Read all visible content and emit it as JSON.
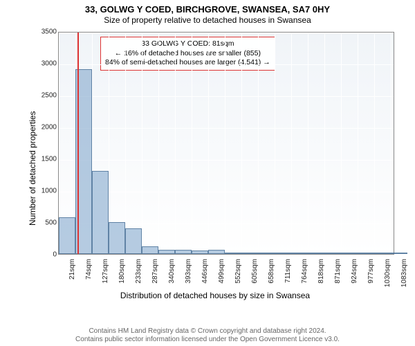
{
  "title": {
    "main": "33, GOLWG Y COED, BIRCHGROVE, SWANSEA, SA7 0HY",
    "sub": "Size of property relative to detached houses in Swansea"
  },
  "chart": {
    "type": "histogram",
    "ylabel": "Number of detached properties",
    "xlabel": "Distribution of detached houses by size in Swansea",
    "ylim": [
      0,
      3500
    ],
    "ytick_step": 500,
    "xmin": 21,
    "xmax": 1096,
    "xtick_step": 53,
    "xtick_unit": "sqm",
    "xticks": [
      21,
      74,
      127,
      180,
      233,
      287,
      340,
      393,
      446,
      499,
      552,
      605,
      658,
      711,
      764,
      818,
      871,
      924,
      977,
      1030,
      1083
    ],
    "bars": [
      {
        "x": 21,
        "v": 580
      },
      {
        "x": 74,
        "v": 2900
      },
      {
        "x": 127,
        "v": 1300
      },
      {
        "x": 180,
        "v": 500
      },
      {
        "x": 233,
        "v": 400
      },
      {
        "x": 287,
        "v": 120
      },
      {
        "x": 340,
        "v": 70
      },
      {
        "x": 393,
        "v": 70
      },
      {
        "x": 446,
        "v": 50
      },
      {
        "x": 499,
        "v": 60
      },
      {
        "x": 552,
        "v": 15
      },
      {
        "x": 605,
        "v": 15
      },
      {
        "x": 658,
        "v": 10
      },
      {
        "x": 711,
        "v": 10
      },
      {
        "x": 764,
        "v": 8
      },
      {
        "x": 818,
        "v": 6
      },
      {
        "x": 871,
        "v": 5
      },
      {
        "x": 924,
        "v": 5
      },
      {
        "x": 977,
        "v": 4
      },
      {
        "x": 1030,
        "v": 3
      },
      {
        "x": 1083,
        "v": 3
      }
    ],
    "bar_fill": "rgba(120,160,200,0.55)",
    "bar_stroke": "rgba(60,100,140,0.7)",
    "reference": {
      "x_sqm": 81,
      "color": "#d33"
    },
    "annotation": {
      "line1": "33 GOLWG Y COED: 81sqm",
      "line2": "← 16% of detached houses are smaller (855)",
      "line3": "84% of semi-detached houses are larger (4,541) →",
      "border_color": "#d33"
    },
    "grid_color": "#ffffff",
    "background_gradient_top": "#f0f4f8",
    "background_gradient_bottom": "#ffffff"
  },
  "footer": {
    "line1": "Contains HM Land Registry data © Crown copyright and database right 2024.",
    "line2": "Contains public sector information licensed under the Open Government Licence v3.0."
  }
}
